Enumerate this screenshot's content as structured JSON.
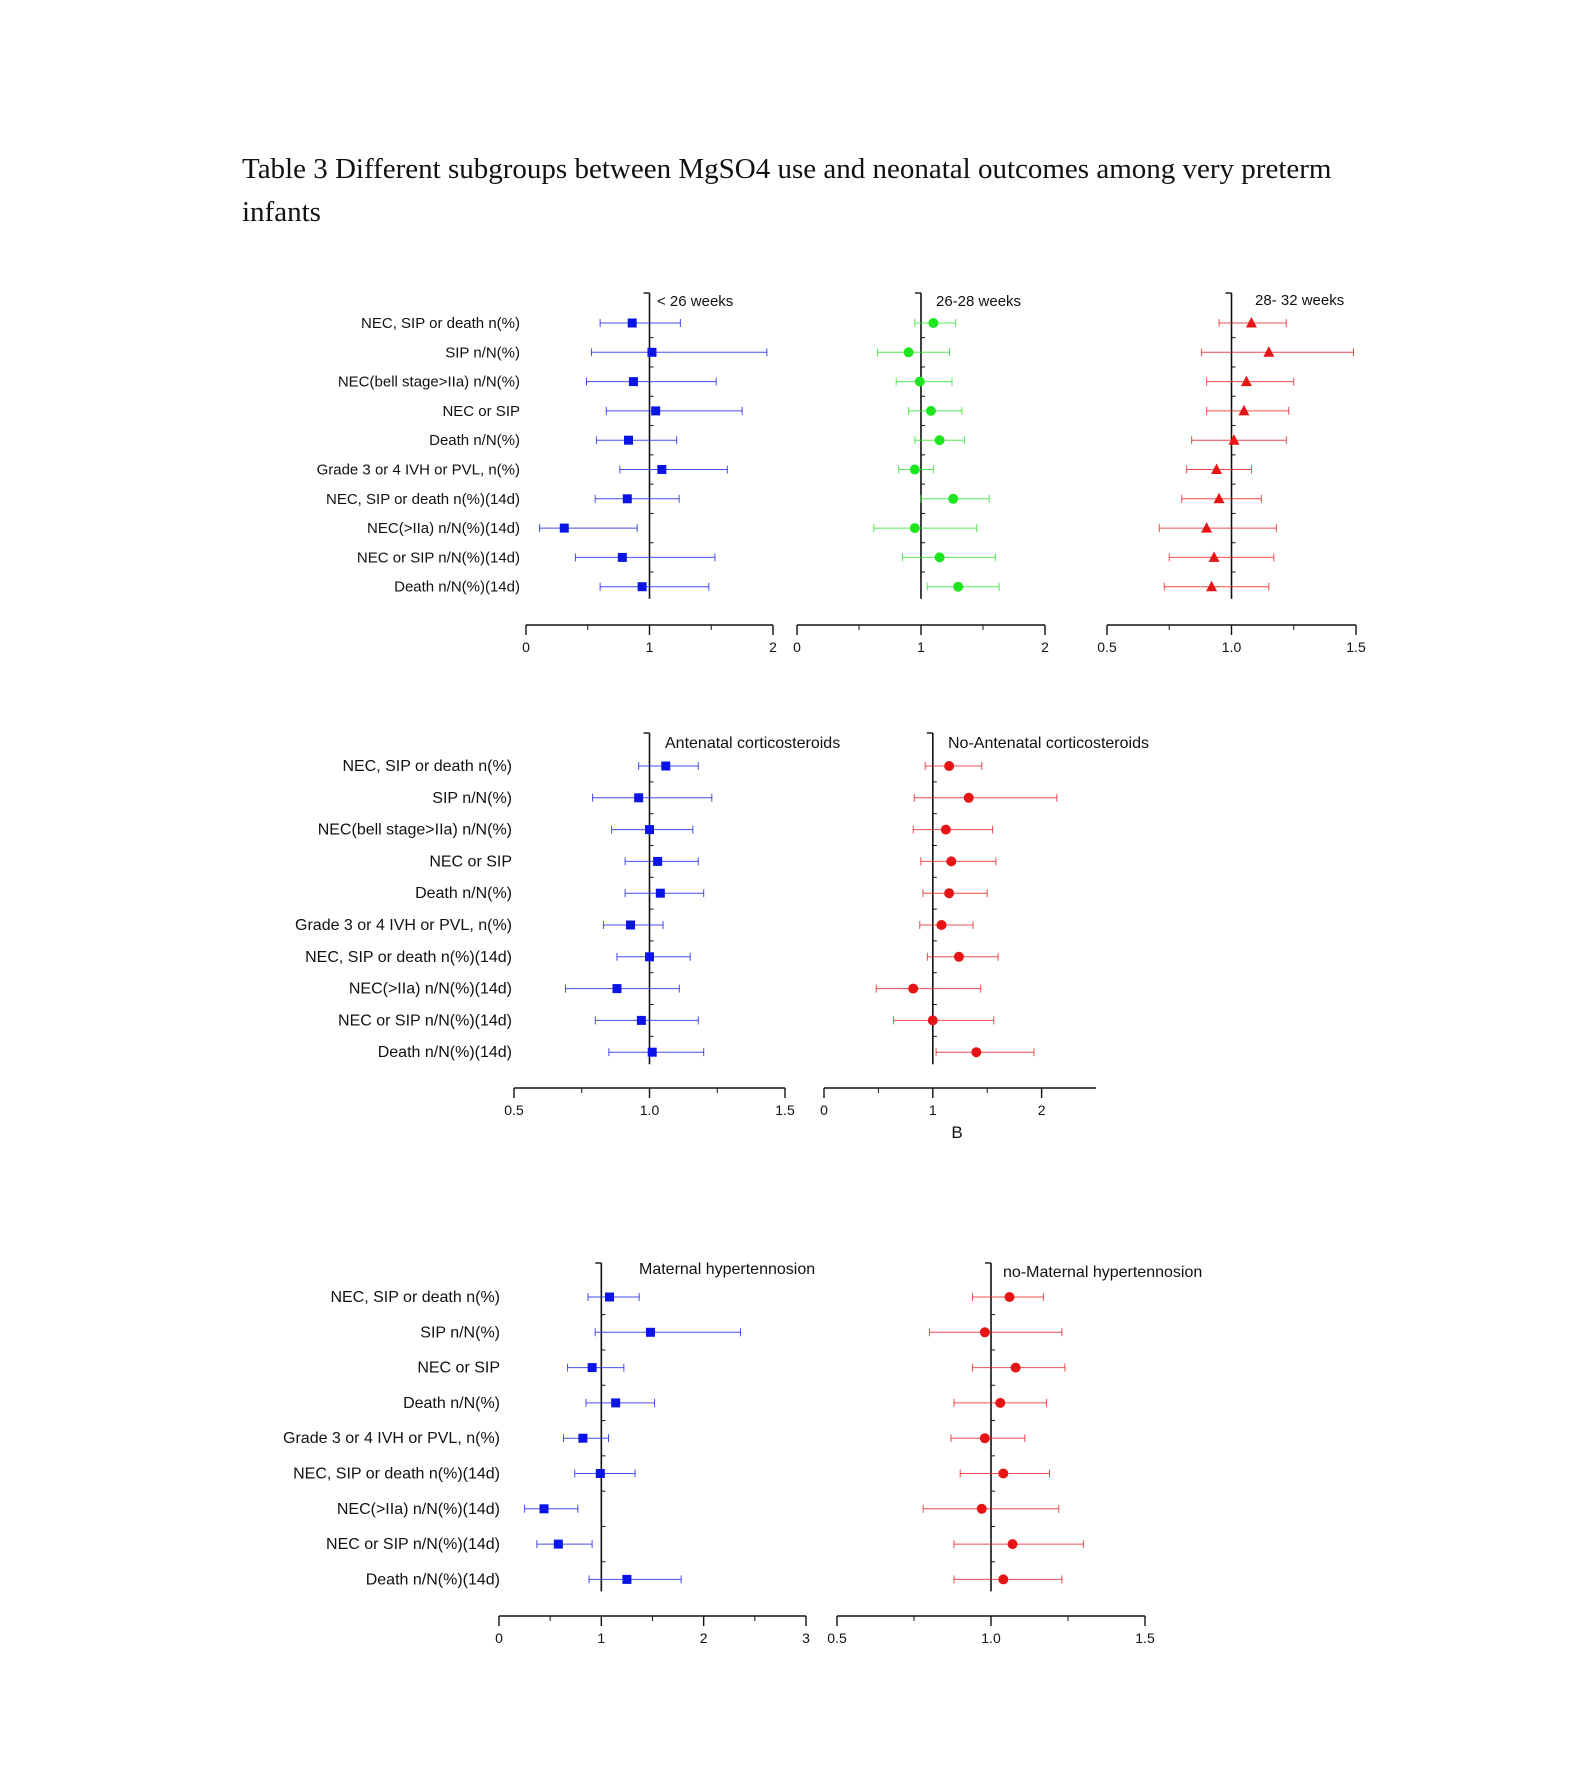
{
  "page": {
    "title": "Table 3 Different subgroups between MgSO4 use and neonatal outcomes among very preterm infants"
  },
  "colors": {
    "blue": "#0a14e6",
    "green": "#1ee61e",
    "red": "#e61414",
    "axis": "#111111"
  },
  "chart_data": [
    {
      "type": "forest",
      "panel": "A1",
      "title": "< 26 weeks",
      "marker": "square",
      "color": "blue",
      "xlim": [
        0,
        2
      ],
      "xticks": [
        0,
        1,
        2
      ],
      "xtick_labels": [
        "0",
        "1",
        "2"
      ],
      "ref": 1,
      "outcomes": [
        "NEC, SIP or death n(%)",
        "SIP n/N(%)",
        "NEC(bell stage>IIa) n/N(%)",
        "NEC or SIP",
        "Death n/N(%)",
        "Grade 3 or 4 IVH or PVL, n(%)",
        "NEC, SIP or death n(%)(14d)",
        "NEC(>IIa) n/N(%)(14d)",
        "NEC or SIP n/N(%)(14d)",
        "Death n/N(%)(14d)"
      ],
      "estimates": [
        0.86,
        1.02,
        0.87,
        1.05,
        0.83,
        1.1,
        0.82,
        0.31,
        0.78,
        0.94
      ],
      "lower": [
        0.6,
        0.53,
        0.49,
        0.65,
        0.57,
        0.76,
        0.56,
        0.11,
        0.4,
        0.6
      ],
      "upper": [
        1.25,
        1.95,
        1.54,
        1.75,
        1.22,
        1.63,
        1.24,
        0.9,
        1.53,
        1.48
      ]
    },
    {
      "type": "forest",
      "panel": "A2",
      "title": "26-28 weeks",
      "marker": "circle",
      "color": "green",
      "xlim": [
        0,
        2
      ],
      "xticks": [
        0,
        1,
        2
      ],
      "xtick_labels": [
        "0",
        "1",
        "2"
      ],
      "ref": 1,
      "estimates": [
        1.1,
        0.9,
        0.99,
        1.08,
        1.15,
        0.95,
        1.26,
        0.95,
        1.15,
        1.3
      ],
      "lower": [
        0.95,
        0.65,
        0.8,
        0.9,
        0.95,
        0.82,
        1.0,
        0.62,
        0.85,
        1.05
      ],
      "upper": [
        1.28,
        1.23,
        1.25,
        1.33,
        1.35,
        1.1,
        1.55,
        1.45,
        1.6,
        1.63
      ]
    },
    {
      "type": "forest",
      "panel": "A3",
      "title": "28- 32 weeks",
      "marker": "triangle",
      "color": "red",
      "xlim": [
        0.5,
        1.5
      ],
      "xticks": [
        0.5,
        1.0,
        1.5
      ],
      "xtick_labels": [
        "0.5",
        "1.0",
        "1.5"
      ],
      "ref": 1,
      "estimates": [
        1.08,
        1.15,
        1.06,
        1.05,
        1.01,
        0.94,
        0.95,
        0.9,
        0.93,
        0.92
      ],
      "lower": [
        0.95,
        0.88,
        0.9,
        0.9,
        0.84,
        0.82,
        0.8,
        0.71,
        0.75,
        0.73
      ],
      "upper": [
        1.22,
        1.49,
        1.25,
        1.23,
        1.22,
        1.08,
        1.12,
        1.18,
        1.17,
        1.15
      ]
    },
    {
      "type": "forest",
      "panel": "B1",
      "title": "Antenatal corticosteroids",
      "marker": "square",
      "color": "blue",
      "xlim": [
        0.5,
        1.5
      ],
      "xticks": [
        0.5,
        1.0,
        1.5
      ],
      "xtick_labels": [
        "0.5",
        "1.0",
        "1.5"
      ],
      "ref": 1,
      "outcomes": [
        "NEC, SIP or death n(%)",
        "SIP n/N(%)",
        "NEC(bell stage>IIa) n/N(%)",
        "NEC or SIP",
        "Death n/N(%)",
        "Grade 3 or 4 IVH or PVL, n(%)",
        "NEC, SIP or death n(%)(14d)",
        "NEC(>IIa) n/N(%)(14d)",
        "NEC or SIP n/N(%)(14d)",
        "Death n/N(%)(14d)"
      ],
      "estimates": [
        1.06,
        0.96,
        1.0,
        1.03,
        1.04,
        0.93,
        1.0,
        0.88,
        0.97,
        1.01
      ],
      "lower": [
        0.96,
        0.79,
        0.86,
        0.91,
        0.91,
        0.83,
        0.88,
        0.69,
        0.8,
        0.85
      ],
      "upper": [
        1.18,
        1.23,
        1.16,
        1.18,
        1.2,
        1.05,
        1.15,
        1.11,
        1.18,
        1.2
      ]
    },
    {
      "type": "forest",
      "panel": "B2",
      "title": "No-Antenatal corticosteroids",
      "marker": "circle",
      "color": "red",
      "xlim": [
        0,
        2.5
      ],
      "xticks": [
        0,
        1,
        2
      ],
      "xtick_labels": [
        "0",
        "1",
        "2"
      ],
      "ref": 1,
      "estimates": [
        1.15,
        1.33,
        1.12,
        1.17,
        1.15,
        1.08,
        1.24,
        0.82,
        1.0,
        1.4
      ],
      "lower": [
        0.93,
        0.83,
        0.82,
        0.89,
        0.91,
        0.88,
        0.95,
        0.48,
        0.64,
        1.03
      ],
      "upper": [
        1.45,
        2.14,
        1.55,
        1.58,
        1.5,
        1.37,
        1.6,
        1.44,
        1.56,
        1.93
      ]
    },
    {
      "type": "forest",
      "panel": "C1",
      "title": "Maternal hypertennosion",
      "marker": "square",
      "color": "blue",
      "xlim": [
        0,
        3
      ],
      "xticks": [
        0,
        1,
        2,
        3
      ],
      "xtick_labels": [
        "0",
        "1",
        "2",
        "3"
      ],
      "ref": 1,
      "outcomes": [
        "NEC, SIP or death n(%)",
        "SIP n/N(%)",
        "NEC or SIP",
        "Death n/N(%)",
        "Grade 3 or 4 IVH or PVL, n(%)",
        "NEC, SIP or death n(%)(14d)",
        "NEC(>IIa) n/N(%)(14d)",
        "NEC or SIP n/N(%)(14d)",
        "Death n/N(%)(14d)"
      ],
      "estimates": [
        1.08,
        1.48,
        0.91,
        1.14,
        0.82,
        0.99,
        0.44,
        0.58,
        1.25
      ],
      "lower": [
        0.87,
        0.94,
        0.67,
        0.85,
        0.63,
        0.74,
        0.25,
        0.37,
        0.88
      ],
      "upper": [
        1.37,
        2.36,
        1.22,
        1.52,
        1.07,
        1.33,
        0.77,
        0.91,
        1.78
      ]
    },
    {
      "type": "forest",
      "panel": "C2",
      "title": "no-Maternal hypertennosion",
      "marker": "circle",
      "color": "red",
      "xlim": [
        0.5,
        1.5
      ],
      "xticks": [
        0.5,
        1.0,
        1.5
      ],
      "xtick_labels": [
        "0.5",
        "1.0",
        "1.5"
      ],
      "ref": 1,
      "estimates": [
        1.06,
        0.98,
        1.08,
        1.03,
        0.98,
        1.04,
        0.97,
        1.07,
        1.04
      ],
      "lower": [
        0.94,
        0.8,
        0.94,
        0.88,
        0.87,
        0.9,
        0.78,
        0.88,
        0.88
      ],
      "upper": [
        1.17,
        1.23,
        1.24,
        1.18,
        1.11,
        1.19,
        1.22,
        1.3,
        1.23
      ]
    }
  ],
  "labels": {
    "panel_b": "B"
  }
}
